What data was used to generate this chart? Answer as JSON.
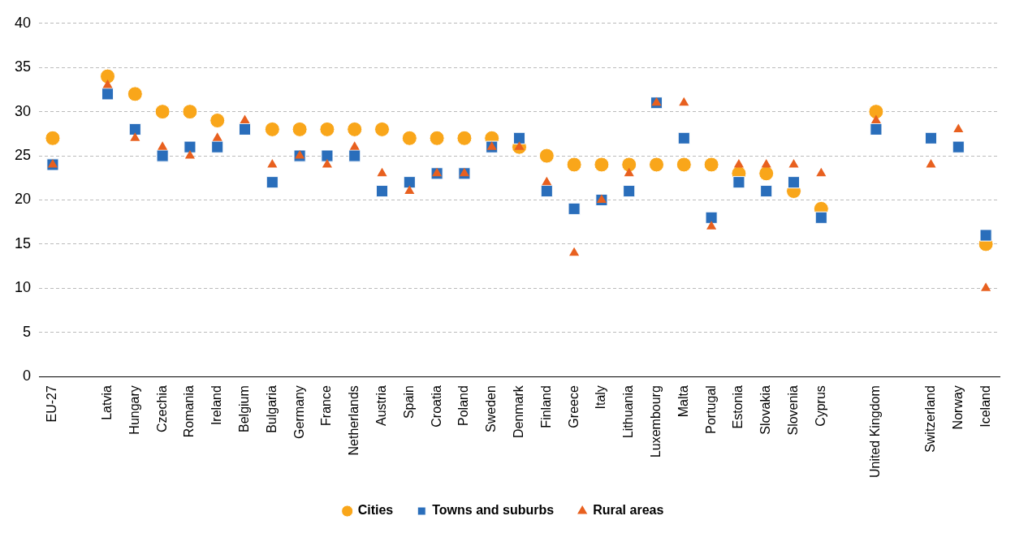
{
  "chart_data": {
    "type": "scatter",
    "categories": [
      "EU-27",
      null,
      "Latvia",
      "Hungary",
      "Czechia",
      "Romania",
      "Ireland",
      "Belgium",
      "Bulgaria",
      "Germany",
      "France",
      "Netherlands",
      "Austria",
      "Spain",
      "Croatia",
      "Poland",
      "Sweden",
      "Denmark",
      "Finland",
      "Greece",
      "Italy",
      "Lithuania",
      "Luxembourg",
      "Malta",
      "Portugal",
      "Estonia",
      "Slovakia",
      "Slovenia",
      "Cyprus",
      null,
      "United Kingdom",
      null,
      "Switzerland",
      "Norway",
      "Iceland"
    ],
    "series": [
      {
        "name": "Cities",
        "color": "#f9a61a",
        "marker": "circle",
        "values": [
          27,
          null,
          34,
          32,
          30,
          30,
          29,
          null,
          28,
          28,
          28,
          28,
          28,
          27,
          27,
          27,
          27,
          26,
          25,
          24,
          24,
          24,
          24,
          24,
          24,
          23,
          23,
          21,
          19,
          null,
          30,
          null,
          null,
          null,
          15
        ]
      },
      {
        "name": "Towns and suburbs",
        "color": "#2a6ebb",
        "marker": "square",
        "values": [
          24,
          null,
          32,
          28,
          25,
          26,
          26,
          28,
          22,
          25,
          25,
          25,
          21,
          22,
          23,
          23,
          26,
          27,
          21,
          19,
          20,
          21,
          31,
          27,
          18,
          22,
          21,
          22,
          18,
          null,
          28,
          null,
          27,
          26,
          16
        ]
      },
      {
        "name": "Rural areas",
        "color": "#e8601f",
        "marker": "triangle",
        "values": [
          24,
          null,
          33,
          27,
          26,
          25,
          27,
          29,
          24,
          25,
          24,
          26,
          23,
          21,
          23,
          23,
          26,
          26,
          22,
          14,
          20,
          23,
          31,
          31,
          17,
          24,
          24,
          24,
          23,
          null,
          29,
          null,
          24,
          28,
          10
        ]
      }
    ],
    "ylim": [
      0,
      40
    ],
    "yticks": [
      0,
      5,
      10,
      15,
      20,
      25,
      30,
      35,
      40
    ],
    "grid": "y",
    "legend": "bottom"
  }
}
